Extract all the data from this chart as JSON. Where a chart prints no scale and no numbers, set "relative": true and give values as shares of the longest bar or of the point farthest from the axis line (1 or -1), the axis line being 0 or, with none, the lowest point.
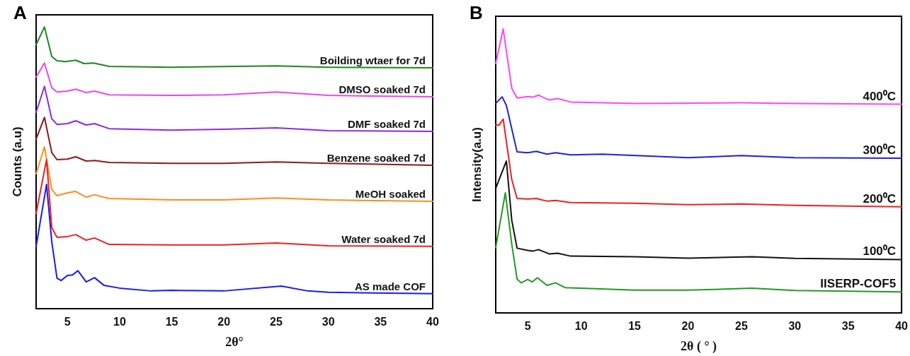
{
  "chart_data": [
    {
      "type": "line",
      "title": "A",
      "xlabel": "2θ°",
      "ylabel": "Counts (a.u)",
      "relative": true,
      "xlim": [
        2,
        40
      ],
      "xticks": [
        5,
        10,
        15,
        20,
        25,
        30,
        35,
        40
      ],
      "grid": false,
      "legend": false,
      "marker": "none",
      "line_style": "solid",
      "series": [
        {
          "name": "Boilding wtaer for 7d",
          "color": "#1a8a1a",
          "x": [
            2,
            2.8,
            3.5,
            4,
            4.8,
            5.8,
            6.6,
            7.5,
            9,
            15,
            25,
            30,
            40
          ],
          "values": [
            0.937,
            1,
            0.895,
            0.88,
            0.877,
            0.882,
            0.87,
            0.872,
            0.86,
            0.857,
            0.862,
            0.857,
            0.855
          ]
        },
        {
          "name": "DMSO soaked 7d",
          "color": "#ee44ee",
          "x": [
            2,
            2.8,
            3.5,
            4,
            5,
            5.8,
            6.8,
            7.6,
            9,
            15,
            20,
            25,
            30,
            40
          ],
          "values": [
            0.822,
            0.872,
            0.784,
            0.769,
            0.772,
            0.779,
            0.767,
            0.772,
            0.759,
            0.757,
            0.759,
            0.769,
            0.757,
            0.752
          ]
        },
        {
          "name": "DMF soaked 7d",
          "color": "#8a2be2",
          "x": [
            2,
            2.8,
            3.5,
            4,
            5,
            5.8,
            6.8,
            7.6,
            9,
            15,
            20,
            25,
            30,
            40
          ],
          "values": [
            0.697,
            0.789,
            0.674,
            0.654,
            0.657,
            0.667,
            0.652,
            0.657,
            0.639,
            0.634,
            0.637,
            0.642,
            0.632,
            0.629
          ]
        },
        {
          "name": "Benzene soaked 7d",
          "color": "#8b1a1a",
          "x": [
            2,
            2.8,
            3.5,
            4,
            5,
            5.8,
            6.8,
            7.6,
            9,
            15,
            20,
            25,
            30,
            40
          ],
          "values": [
            0.602,
            0.679,
            0.554,
            0.529,
            0.531,
            0.539,
            0.524,
            0.526,
            0.519,
            0.516,
            0.516,
            0.521,
            0.516,
            0.509
          ]
        },
        {
          "name": "MeOH soaked",
          "color": "#ff8c1a",
          "x": [
            2,
            2.8,
            3.5,
            4,
            5,
            5.8,
            6.8,
            7.6,
            9,
            15,
            20,
            25,
            30,
            40
          ],
          "values": [
            0.479,
            0.574,
            0.424,
            0.401,
            0.411,
            0.416,
            0.396,
            0.404,
            0.391,
            0.386,
            0.386,
            0.393,
            0.386,
            0.381
          ]
        },
        {
          "name": "Water soaked 7d",
          "color": "#ee2020",
          "x": [
            2,
            3,
            3.5,
            4,
            5,
            5.8,
            6.8,
            7.6,
            9,
            15,
            20,
            25,
            30,
            40
          ],
          "values": [
            0.338,
            0.529,
            0.288,
            0.253,
            0.256,
            0.263,
            0.243,
            0.251,
            0.228,
            0.226,
            0.226,
            0.233,
            0.223,
            0.221
          ]
        },
        {
          "name": "AS made COF",
          "color": "#1a1aee",
          "x": [
            2,
            3,
            3.5,
            4,
            4.4,
            5,
            5.5,
            6,
            6.8,
            7.6,
            8.5,
            10,
            13,
            15,
            20,
            25.5,
            28,
            30,
            40
          ],
          "values": [
            0.221,
            0.441,
            0.238,
            0.108,
            0.1,
            0.118,
            0.12,
            0.135,
            0.095,
            0.11,
            0.083,
            0.073,
            0.063,
            0.065,
            0.063,
            0.08,
            0.063,
            0.058,
            0.053
          ]
        }
      ]
    },
    {
      "type": "line",
      "title": "B",
      "xlabel": "2θ ( ° )",
      "ylabel": "Intensity(a.u)",
      "relative": true,
      "xlim": [
        2,
        40
      ],
      "xticks": [
        5,
        10,
        15,
        20,
        25,
        30,
        35,
        40
      ],
      "grid": false,
      "legend": false,
      "marker": "none",
      "line_style": "solid",
      "series": [
        {
          "name": "400⁰C",
          "color": "#ff44ff",
          "x": [
            2,
            2.7,
            3.5,
            4,
            5,
            5.5,
            6,
            7,
            7.8,
            9,
            15,
            25,
            30,
            40
          ],
          "values": [
            0.879,
            1,
            0.792,
            0.757,
            0.762,
            0.76,
            0.767,
            0.75,
            0.755,
            0.743,
            0.738,
            0.74,
            0.738,
            0.735
          ]
        },
        {
          "name": "300⁰C",
          "color": "#2020e0",
          "x": [
            2,
            2.6,
            3,
            3.5,
            4,
            5,
            5.8,
            6.8,
            7.6,
            9,
            12,
            20,
            25,
            30,
            40
          ],
          "values": [
            0.738,
            0.761,
            0.731,
            0.649,
            0.567,
            0.564,
            0.569,
            0.559,
            0.564,
            0.557,
            0.559,
            0.547,
            0.554,
            0.547,
            0.545
          ]
        },
        {
          "name": "200⁰C",
          "color": "#ee2020",
          "x": [
            2,
            2.3,
            2.7,
            3.5,
            4,
            5,
            5.8,
            6.8,
            7.6,
            9,
            15,
            20,
            25,
            30,
            40
          ],
          "values": [
            0.663,
            0.661,
            0.683,
            0.47,
            0.403,
            0.401,
            0.403,
            0.394,
            0.396,
            0.389,
            0.386,
            0.381,
            0.384,
            0.379,
            0.374
          ]
        },
        {
          "name": "100⁰C",
          "color": "#111111",
          "x": [
            2,
            3,
            3.5,
            4,
            5,
            5.5,
            6,
            7,
            7.8,
            9,
            15,
            20,
            26,
            30,
            40
          ],
          "values": [
            0.439,
            0.535,
            0.327,
            0.228,
            0.22,
            0.218,
            0.223,
            0.208,
            0.21,
            0.2,
            0.198,
            0.193,
            0.198,
            0.192,
            0.188
          ]
        },
        {
          "name": "IISERP-COF5",
          "color": "#229922",
          "x": [
            2,
            2.9,
            3.5,
            4,
            4.4,
            5,
            5.4,
            5.9,
            6.8,
            7.6,
            8.5,
            10,
            15,
            20,
            26,
            30,
            40
          ],
          "values": [
            0.23,
            0.423,
            0.243,
            0.119,
            0.106,
            0.118,
            0.109,
            0.124,
            0.097,
            0.106,
            0.089,
            0.087,
            0.08,
            0.08,
            0.087,
            0.079,
            0.074
          ]
        }
      ]
    }
  ]
}
